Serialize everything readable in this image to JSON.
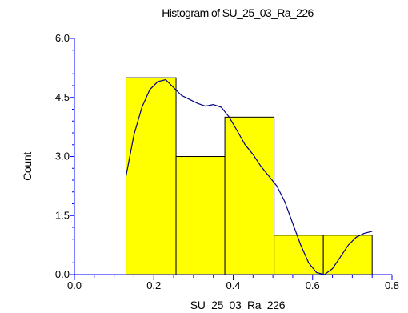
{
  "chart_data": {
    "type": "bar",
    "title": "Histogram of SU_25_03_Ra_226",
    "xlabel": "SU_25_03_Ra_226",
    "ylabel": "Count",
    "xlim": [
      0.0,
      0.8
    ],
    "ylim": [
      0.0,
      6.0
    ],
    "x_ticks": [
      "0.0",
      "0.2",
      "0.4",
      "0.6",
      "0.8"
    ],
    "y_ticks": [
      "0.0",
      "1.5",
      "3.0",
      "4.5",
      "6.0"
    ],
    "bins": [
      {
        "from": 0.13,
        "to": 0.256,
        "count": 5
      },
      {
        "from": 0.256,
        "to": 0.379,
        "count": 3
      },
      {
        "from": 0.379,
        "to": 0.503,
        "count": 4
      },
      {
        "from": 0.503,
        "to": 0.627,
        "count": 1
      },
      {
        "from": 0.627,
        "to": 0.75,
        "count": 1
      }
    ],
    "density_curve": {
      "x": [
        0.13,
        0.15,
        0.17,
        0.19,
        0.21,
        0.23,
        0.25,
        0.27,
        0.29,
        0.31,
        0.33,
        0.35,
        0.37,
        0.39,
        0.41,
        0.43,
        0.45,
        0.47,
        0.49,
        0.51,
        0.53,
        0.55,
        0.57,
        0.59,
        0.61,
        0.63,
        0.65,
        0.67,
        0.69,
        0.71,
        0.73,
        0.75
      ],
      "y": [
        2.5,
        3.55,
        4.25,
        4.7,
        4.9,
        4.95,
        4.75,
        4.55,
        4.45,
        4.35,
        4.28,
        4.32,
        4.25,
        4.0,
        3.65,
        3.3,
        3.05,
        2.75,
        2.5,
        2.25,
        1.85,
        1.3,
        0.75,
        0.3,
        0.05,
        0.0,
        0.15,
        0.45,
        0.75,
        0.95,
        1.05,
        1.1
      ]
    },
    "colors": {
      "bar_fill": "#ffff00",
      "bar_stroke": "#000000",
      "axis": "#0000ff",
      "curve": "#000080"
    },
    "grid": false,
    "legend": "none"
  }
}
